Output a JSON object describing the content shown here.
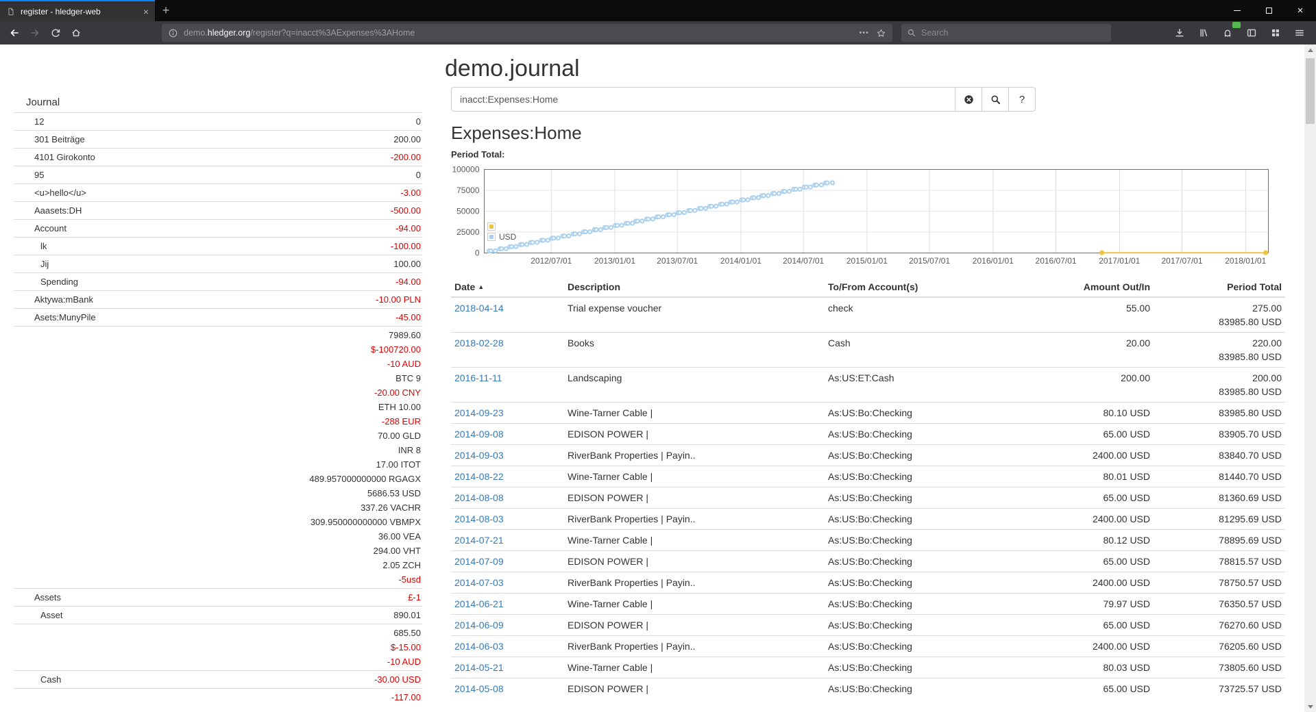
{
  "browser": {
    "tab_bar": {
      "active_tab": {
        "title": "register - hledger-web",
        "close_label": "×"
      },
      "new_tab_label": "+",
      "window_close_label": "×"
    },
    "toolbar": {
      "url": {
        "prefix": "demo.",
        "domain": "hledger.org",
        "path": "/register?q=inacct%3AExpenses%3AHome"
      },
      "page_actions_label": "•••",
      "search_placeholder": "Search"
    },
    "icons": {
      "tab_favicon": "page-icon",
      "back": "arrow-left",
      "forward": "arrow-right",
      "reload": "circular-arrow",
      "home": "house",
      "site_info": "circled-i",
      "bookmark": "star-outline",
      "search": "magnifier",
      "downloads": "download-arrow",
      "library": "book-stack",
      "extension": "ghost-with-green-badge",
      "sidebars": "split-panel",
      "screenshots": "squares-grid",
      "menu": "hamburger"
    }
  },
  "page": {
    "title": "demo.journal",
    "sidebar": {
      "heading": "Journal",
      "accounts": [
        {
          "name": "12",
          "depth": 1,
          "amounts": [
            {
              "text": "0",
              "negative": false
            }
          ]
        },
        {
          "name": "301 Beiträge",
          "depth": 1,
          "amounts": [
            {
              "text": "200.00",
              "negative": false
            }
          ]
        },
        {
          "name": "4101 Girokonto",
          "depth": 1,
          "amounts": [
            {
              "text": "-200.00",
              "negative": true
            }
          ]
        },
        {
          "name": "95",
          "depth": 1,
          "amounts": [
            {
              "text": "0",
              "negative": false
            }
          ]
        },
        {
          "name": "<u>hello</u>",
          "depth": 1,
          "amounts": [
            {
              "text": "-3.00",
              "negative": true
            }
          ]
        },
        {
          "name": "Aaasets:DH",
          "depth": 1,
          "amounts": [
            {
              "text": "-500.00",
              "negative": true
            }
          ]
        },
        {
          "name": "Account",
          "depth": 1,
          "amounts": [
            {
              "text": "-94.00",
              "negative": true
            }
          ]
        },
        {
          "name": "lk",
          "depth": 2,
          "amounts": [
            {
              "text": "-100.00",
              "negative": true
            }
          ]
        },
        {
          "name": "Jij",
          "depth": 2,
          "amounts": [
            {
              "text": "100.00",
              "negative": false
            }
          ]
        },
        {
          "name": "Spending",
          "depth": 2,
          "amounts": [
            {
              "text": "-94.00",
              "negative": true
            }
          ]
        },
        {
          "name": "Aktywa:mBank",
          "depth": 1,
          "amounts": [
            {
              "text": "-10.00 PLN",
              "negative": true
            }
          ]
        },
        {
          "name": "Asets:MunyPile",
          "depth": 1,
          "amounts": [
            {
              "text": "-45.00",
              "negative": true
            }
          ]
        },
        {
          "name": "",
          "depth": 1,
          "amounts": [
            {
              "text": "7989.60",
              "negative": false
            },
            {
              "text": "$-100720.00",
              "negative": true
            },
            {
              "text": "-10 AUD",
              "negative": true
            },
            {
              "text": "BTC 9",
              "negative": false
            },
            {
              "text": "-20.00 CNY",
              "negative": true
            },
            {
              "text": "ETH 10.00",
              "negative": false
            },
            {
              "text": "-288 EUR",
              "negative": true
            },
            {
              "text": "70.00 GLD",
              "negative": false
            },
            {
              "text": "INR 8",
              "negative": false
            },
            {
              "text": "17.00 ITOT",
              "negative": false
            },
            {
              "text": "489.957000000000 RGAGX",
              "negative": false
            },
            {
              "text": "5686.53 USD",
              "negative": false
            },
            {
              "text": "337.26 VACHR",
              "negative": false
            },
            {
              "text": "309.950000000000 VBMPX",
              "negative": false
            },
            {
              "text": "36.00 VEA",
              "negative": false
            },
            {
              "text": "294.00 VHT",
              "negative": false
            },
            {
              "text": "2.05 ZCH",
              "negative": false
            },
            {
              "text": "-5usd",
              "negative": true
            }
          ]
        },
        {
          "name": "Assets",
          "depth": 1,
          "amounts": [
            {
              "text": "£-1",
              "negative": true
            }
          ]
        },
        {
          "name": "Asset",
          "depth": 2,
          "amounts": [
            {
              "text": "890.01",
              "negative": false
            }
          ]
        },
        {
          "name": "",
          "depth": 2,
          "amounts": [
            {
              "text": "685.50",
              "negative": false
            },
            {
              "text": "$-15.00",
              "negative": true
            },
            {
              "text": "-10 AUD",
              "negative": true
            }
          ]
        },
        {
          "name": "Cash",
          "depth": 2,
          "amounts": [
            {
              "text": "-30.00 USD",
              "negative": true
            }
          ]
        },
        {
          "name": "",
          "depth": 2,
          "amounts": [
            {
              "text": "-117.00",
              "negative": true
            }
          ]
        }
      ]
    },
    "query": {
      "value": "inacct:Expenses:Home",
      "help_label": "?"
    },
    "register": {
      "heading": "Expenses:Home",
      "period_total_label": "Period Total:",
      "table": {
        "headers": [
          "Date",
          "Description",
          "To/From Account(s)",
          "Amount Out/In",
          "Period Total"
        ],
        "sort_indicator": "▲",
        "rows": [
          {
            "date": "2018-04-14",
            "description": "Trial expense voucher",
            "account": "check",
            "amount": "55.00",
            "period_total": [
              "275.00",
              "83985.80 USD"
            ]
          },
          {
            "date": "2018-02-28",
            "description": "Books",
            "account": "Cash",
            "amount": "20.00",
            "period_total": [
              "220.00",
              "83985.80 USD"
            ]
          },
          {
            "date": "2016-11-11",
            "description": "Landscaping",
            "account": "As:US:ET:Cash",
            "amount": "200.00",
            "period_total": [
              "200.00",
              "83985.80 USD"
            ]
          },
          {
            "date": "2014-09-23",
            "description": "Wine-Tarner Cable |",
            "account": "As:US:Bo:Checking",
            "amount": "80.10 USD",
            "period_total": [
              "83985.80 USD"
            ]
          },
          {
            "date": "2014-09-08",
            "description": "EDISON POWER |",
            "account": "As:US:Bo:Checking",
            "amount": "65.00 USD",
            "period_total": [
              "83905.70 USD"
            ]
          },
          {
            "date": "2014-09-03",
            "description": "RiverBank Properties | Payin..",
            "account": "As:US:Bo:Checking",
            "amount": "2400.00 USD",
            "period_total": [
              "83840.70 USD"
            ]
          },
          {
            "date": "2014-08-22",
            "description": "Wine-Tarner Cable |",
            "account": "As:US:Bo:Checking",
            "amount": "80.01 USD",
            "period_total": [
              "81440.70 USD"
            ]
          },
          {
            "date": "2014-08-08",
            "description": "EDISON POWER |",
            "account": "As:US:Bo:Checking",
            "amount": "65.00 USD",
            "period_total": [
              "81360.69 USD"
            ]
          },
          {
            "date": "2014-08-03",
            "description": "RiverBank Properties | Payin..",
            "account": "As:US:Bo:Checking",
            "amount": "2400.00 USD",
            "period_total": [
              "81295.69 USD"
            ]
          },
          {
            "date": "2014-07-21",
            "description": "Wine-Tarner Cable |",
            "account": "As:US:Bo:Checking",
            "amount": "80.12 USD",
            "period_total": [
              "78895.69 USD"
            ]
          },
          {
            "date": "2014-07-09",
            "description": "EDISON POWER |",
            "account": "As:US:Bo:Checking",
            "amount": "65.00 USD",
            "period_total": [
              "78815.57 USD"
            ]
          },
          {
            "date": "2014-07-03",
            "description": "RiverBank Properties | Payin..",
            "account": "As:US:Bo:Checking",
            "amount": "2400.00 USD",
            "period_total": [
              "78750.57 USD"
            ]
          },
          {
            "date": "2014-06-21",
            "description": "Wine-Tarner Cable |",
            "account": "As:US:Bo:Checking",
            "amount": "79.97 USD",
            "period_total": [
              "76350.57 USD"
            ]
          },
          {
            "date": "2014-06-09",
            "description": "EDISON POWER |",
            "account": "As:US:Bo:Checking",
            "amount": "65.00 USD",
            "period_total": [
              "76270.60 USD"
            ]
          },
          {
            "date": "2014-06-03",
            "description": "RiverBank Properties | Payin..",
            "account": "As:US:Bo:Checking",
            "amount": "2400.00 USD",
            "period_total": [
              "76205.60 USD"
            ]
          },
          {
            "date": "2014-05-21",
            "description": "Wine-Tarner Cable |",
            "account": "As:US:Bo:Checking",
            "amount": "80.03 USD",
            "period_total": [
              "73805.60 USD"
            ]
          },
          {
            "date": "2014-05-08",
            "description": "EDISON POWER |",
            "account": "As:US:Bo:Checking",
            "amount": "65.00 USD",
            "period_total": [
              "73725.57 USD"
            ]
          }
        ]
      }
    },
    "colors": {
      "link": "#337ab7",
      "negative": "#dd0000"
    }
  },
  "chart_data": {
    "type": "line",
    "title": "Period Total:",
    "xlabel": "",
    "ylabel": "",
    "grid": true,
    "legend_position": "left-middle",
    "x_axis": {
      "type": "date",
      "domain": [
        "2011-12-20",
        "2018-03-08"
      ],
      "tick_labels": [
        "2012/07/01",
        "2013/01/01",
        "2013/07/01",
        "2014/01/01",
        "2014/07/01",
        "2015/01/01",
        "2015/07/01",
        "2016/01/01",
        "2016/07/01",
        "2017/01/01",
        "2017/07/01",
        "2018/01/01"
      ]
    },
    "y_axis": {
      "domain": [
        0,
        100000
      ],
      "ticks": [
        0,
        25000,
        50000,
        75000,
        100000
      ]
    },
    "series": [
      {
        "name": "",
        "color": "#edc240",
        "draw": [
          "line",
          "points"
        ],
        "point_fill": "#edc240",
        "points": [
          [
            "2016-11-11",
            200
          ],
          [
            "2018-02-28",
            220
          ],
          [
            "2018-04-14",
            275
          ]
        ]
      },
      {
        "name": "USD",
        "color": "#a9d0ee",
        "draw": [
          "points"
        ],
        "point_fill": "#ffffff",
        "points": [
          [
            "2012-01-03",
            2400
          ],
          [
            "2012-01-08",
            2465
          ],
          [
            "2012-01-21",
            2545
          ],
          [
            "2012-02-03",
            4945
          ],
          [
            "2012-02-08",
            5010
          ],
          [
            "2012-02-21",
            5090
          ],
          [
            "2012-03-03",
            7490
          ],
          [
            "2012-03-08",
            7555
          ],
          [
            "2012-03-21",
            7635
          ],
          [
            "2012-04-03",
            10035
          ],
          [
            "2012-04-08",
            10100
          ],
          [
            "2012-04-21",
            10180
          ],
          [
            "2012-05-03",
            12580
          ],
          [
            "2012-05-08",
            12645
          ],
          [
            "2012-05-21",
            12725
          ],
          [
            "2012-06-03",
            15125
          ],
          [
            "2012-06-08",
            15190
          ],
          [
            "2012-06-21",
            15270
          ],
          [
            "2012-07-03",
            17670
          ],
          [
            "2012-07-08",
            17735
          ],
          [
            "2012-07-21",
            17815
          ],
          [
            "2012-08-03",
            20215
          ],
          [
            "2012-08-08",
            20280
          ],
          [
            "2012-08-21",
            20360
          ],
          [
            "2012-09-03",
            22760
          ],
          [
            "2012-09-08",
            22825
          ],
          [
            "2012-09-21",
            22905
          ],
          [
            "2012-10-03",
            25305
          ],
          [
            "2012-10-08",
            25370
          ],
          [
            "2012-10-21",
            25450
          ],
          [
            "2012-11-03",
            27850
          ],
          [
            "2012-11-08",
            27915
          ],
          [
            "2012-11-21",
            27995
          ],
          [
            "2012-12-03",
            30395
          ],
          [
            "2012-12-08",
            30460
          ],
          [
            "2012-12-21",
            30540
          ],
          [
            "2013-01-03",
            32940
          ],
          [
            "2013-01-08",
            33005
          ],
          [
            "2013-01-21",
            33085
          ],
          [
            "2013-02-03",
            35485
          ],
          [
            "2013-02-08",
            35550
          ],
          [
            "2013-02-21",
            35630
          ],
          [
            "2013-03-03",
            38030
          ],
          [
            "2013-03-08",
            38095
          ],
          [
            "2013-03-21",
            38175
          ],
          [
            "2013-04-03",
            40575
          ],
          [
            "2013-04-08",
            40640
          ],
          [
            "2013-04-21",
            40720
          ],
          [
            "2013-05-03",
            43120
          ],
          [
            "2013-05-08",
            43185
          ],
          [
            "2013-05-21",
            43265
          ],
          [
            "2013-06-03",
            45665
          ],
          [
            "2013-06-08",
            45730
          ],
          [
            "2013-06-21",
            45810
          ],
          [
            "2013-07-03",
            48210
          ],
          [
            "2013-07-08",
            48275
          ],
          [
            "2013-07-21",
            48355
          ],
          [
            "2013-08-03",
            50755
          ],
          [
            "2013-08-08",
            50820
          ],
          [
            "2013-08-21",
            50900
          ],
          [
            "2013-09-03",
            53300
          ],
          [
            "2013-09-08",
            53365
          ],
          [
            "2013-09-21",
            53445
          ],
          [
            "2013-10-03",
            55845
          ],
          [
            "2013-10-08",
            55910
          ],
          [
            "2013-10-21",
            55990
          ],
          [
            "2013-11-03",
            58390
          ],
          [
            "2013-11-08",
            58455
          ],
          [
            "2013-11-21",
            58535
          ],
          [
            "2013-12-03",
            60935
          ],
          [
            "2013-12-08",
            61000
          ],
          [
            "2013-12-21",
            61080
          ],
          [
            "2014-01-03",
            63480
          ],
          [
            "2014-01-08",
            63545
          ],
          [
            "2014-01-21",
            63625
          ],
          [
            "2014-02-03",
            66025
          ],
          [
            "2014-02-08",
            66090
          ],
          [
            "2014-02-21",
            66170
          ],
          [
            "2014-03-03",
            68570
          ],
          [
            "2014-03-08",
            68635
          ],
          [
            "2014-03-21",
            68715
          ],
          [
            "2014-04-03",
            71115
          ],
          [
            "2014-04-08",
            71180
          ],
          [
            "2014-04-21",
            71260
          ],
          [
            "2014-05-03",
            73660
          ],
          [
            "2014-05-08",
            73725.57
          ],
          [
            "2014-05-21",
            73805.6
          ],
          [
            "2014-06-03",
            76205.6
          ],
          [
            "2014-06-09",
            76270.6
          ],
          [
            "2014-06-21",
            76350.57
          ],
          [
            "2014-07-03",
            78750.57
          ],
          [
            "2014-07-09",
            78815.57
          ],
          [
            "2014-07-21",
            78895.69
          ],
          [
            "2014-08-03",
            81295.69
          ],
          [
            "2014-08-08",
            81360.69
          ],
          [
            "2014-08-22",
            81440.7
          ],
          [
            "2014-09-03",
            83840.7
          ],
          [
            "2014-09-08",
            83905.7
          ],
          [
            "2014-09-23",
            83985.8
          ]
        ]
      }
    ]
  }
}
